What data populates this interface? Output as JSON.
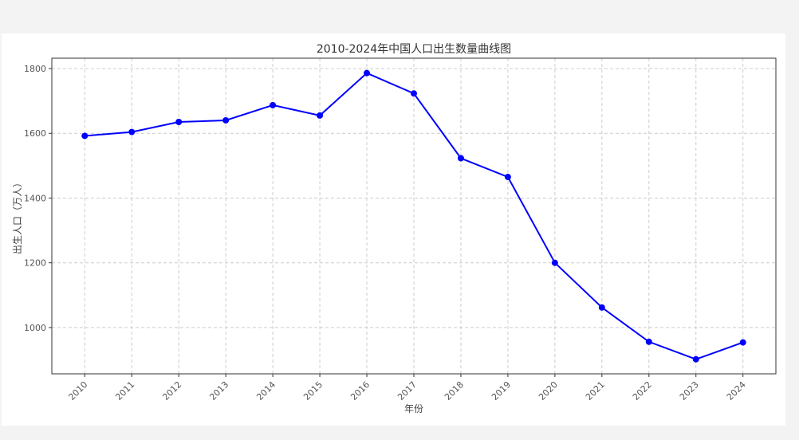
{
  "chart_data": {
    "type": "line",
    "title": "2010-2024年中国人口出生数量曲线图",
    "xlabel": "年份",
    "ylabel": "出生人口（万人）",
    "x": [
      2010,
      2011,
      2012,
      2013,
      2014,
      2015,
      2016,
      2017,
      2018,
      2019,
      2020,
      2021,
      2022,
      2023,
      2024
    ],
    "y": [
      1592,
      1604,
      1635,
      1640,
      1687,
      1655,
      1786,
      1723,
      1523,
      1465,
      1200,
      1062,
      956,
      902,
      954
    ],
    "xticks": [
      "2010",
      "2011",
      "2012",
      "2013",
      "2014",
      "2015",
      "2016",
      "2017",
      "2018",
      "2019",
      "2020",
      "2021",
      "2022",
      "2023",
      "2024"
    ],
    "yticks": [
      1000,
      1200,
      1400,
      1600,
      1800
    ],
    "xlim": [
      2009.3,
      2024.7
    ],
    "ylim": [
      857,
      1832
    ],
    "grid": true,
    "marker": "circle",
    "line_color": "#0000ff"
  }
}
